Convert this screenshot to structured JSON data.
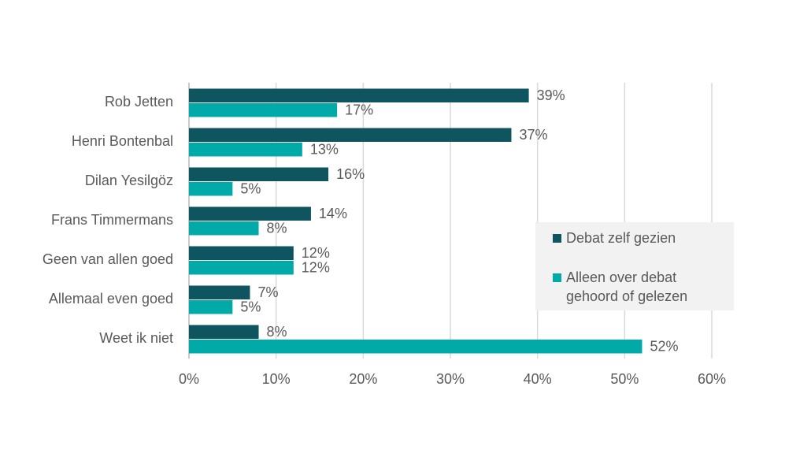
{
  "chart_data": {
    "type": "hbar",
    "categories": [
      "Rob Jetten",
      "Henri Bontenbal",
      "Dilan Yesilgöz",
      "Frans Timmermans",
      "Geen van allen goed",
      "Allemaal even goed",
      "Weet ik niet"
    ],
    "series": [
      {
        "name": "Debat zelf gezien",
        "color": "#0e5560",
        "values": [
          39,
          37,
          16,
          14,
          12,
          7,
          8
        ],
        "value_labels": [
          "39%",
          "37%",
          "16%",
          "14%",
          "12%",
          "7%",
          "8%"
        ]
      },
      {
        "name": "Alleen over debat gehoord of gelezen",
        "color": "#00aaa8",
        "values": [
          17,
          13,
          5,
          8,
          12,
          5,
          52
        ],
        "value_labels": [
          "17%",
          "13%",
          "5%",
          "8%",
          "12%",
          "5%",
          "52%"
        ]
      }
    ],
    "xlim": [
      0,
      60
    ],
    "xticks": [
      {
        "value": 0,
        "label": "0%"
      },
      {
        "value": 10,
        "label": "10%"
      },
      {
        "value": 20,
        "label": "20%"
      },
      {
        "value": 30,
        "label": "30%"
      },
      {
        "value": 40,
        "label": "40%"
      },
      {
        "value": 50,
        "label": "50%"
      },
      {
        "value": 60,
        "label": "60%"
      }
    ],
    "grid": true,
    "legend": "right"
  }
}
